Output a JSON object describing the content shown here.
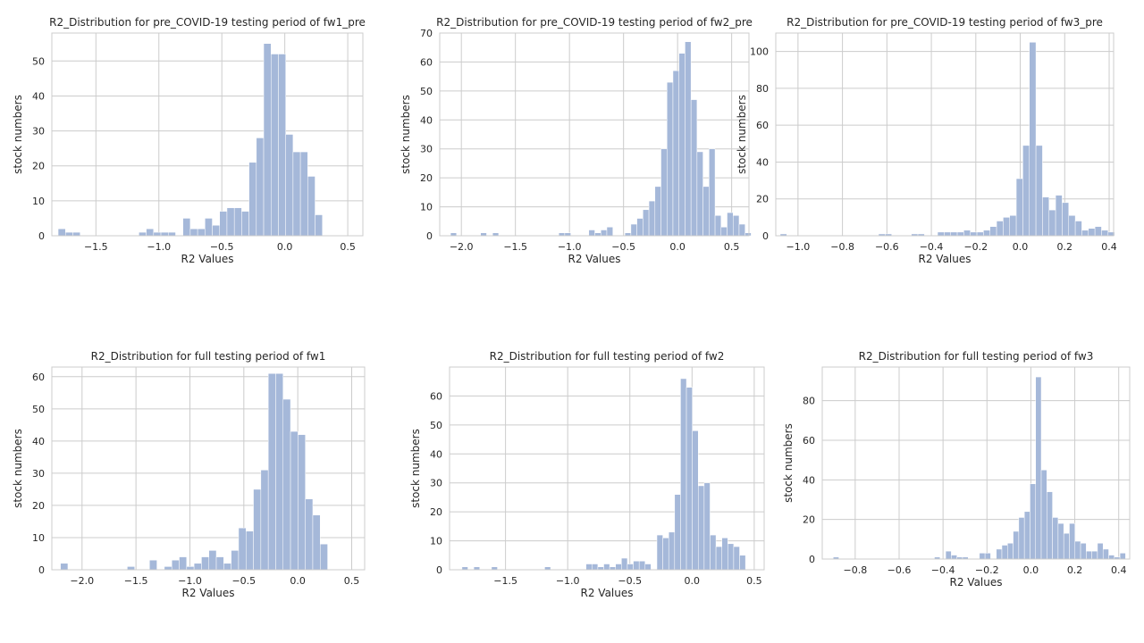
{
  "colors": {
    "bar": "#a5b8d9",
    "grid": "#cccccc",
    "text": "#262626"
  },
  "chart_data": [
    {
      "type": "bar",
      "title": "R2_Distribution for pre_COVID-19 testing period of fw1_pre",
      "xlabel": "R2 Values",
      "ylabel": "stock numbers",
      "xlim": [
        -1.85,
        0.62
      ],
      "ylim": [
        0,
        58
      ],
      "xticks": [
        -1.5,
        -1.0,
        -0.5,
        0.0,
        0.5
      ],
      "xtick_labels": [
        "−1.5",
        "−1.0",
        "−0.5",
        "0.0",
        "0.5"
      ],
      "yticks": [
        0,
        10,
        20,
        30,
        40,
        50
      ],
      "ytick_labels": [
        "0",
        "10",
        "20",
        "30",
        "40",
        "50"
      ],
      "bin_start": -1.8,
      "bin_width": 0.0583,
      "values": [
        2,
        1,
        1,
        0,
        0,
        0,
        0,
        0,
        0,
        0,
        0,
        1,
        2,
        1,
        1,
        1,
        0,
        5,
        2,
        2,
        5,
        3,
        7,
        8,
        8,
        7,
        21,
        28,
        55,
        52,
        52,
        29,
        24,
        24,
        17,
        6
      ]
    },
    {
      "type": "bar",
      "title": "R2_Distribution for pre_COVID-19 testing period of fw2_pre",
      "xlabel": "R2 Values",
      "ylabel": "stock numbers",
      "xlim": [
        -2.2,
        0.66
      ],
      "ylim": [
        0,
        70
      ],
      "xticks": [
        -2.0,
        -1.5,
        -1.0,
        -0.5,
        0.0,
        0.5
      ],
      "xtick_labels": [
        "−2.0",
        "−1.5",
        "−1.0",
        "−0.5",
        "0.0",
        "0.5"
      ],
      "yticks": [
        0,
        10,
        20,
        30,
        40,
        50,
        60,
        70
      ],
      "ytick_labels": [
        "0",
        "10",
        "20",
        "30",
        "40",
        "50",
        "60",
        "70"
      ],
      "bin_start": -2.1,
      "bin_width": 0.0556,
      "values": [
        1,
        0,
        0,
        0,
        0,
        1,
        0,
        1,
        0,
        0,
        0,
        0,
        0,
        0,
        0,
        0,
        0,
        0,
        1,
        1,
        0,
        0,
        0,
        2,
        1,
        2,
        3,
        0,
        0,
        1,
        4,
        6,
        9,
        12,
        17,
        30,
        53,
        57,
        63,
        67,
        47,
        29,
        17,
        30,
        7,
        3,
        8,
        7,
        4,
        1
      ]
    },
    {
      "type": "bar",
      "title": "R2_Distribution for pre_COVID-19 testing period of fw3_pre",
      "xlabel": "R2 Values",
      "ylabel": "stock numbers",
      "xlim": [
        -1.1,
        0.42
      ],
      "ylim": [
        0,
        110
      ],
      "xticks": [
        -1.0,
        -0.8,
        -0.6,
        -0.4,
        -0.2,
        0.0,
        0.2,
        0.4
      ],
      "xtick_labels": [
        "−1.0",
        "−0.8",
        "−0.6",
        "−0.4",
        "−0.2",
        "0.0",
        "0.2",
        "0.4"
      ],
      "yticks": [
        0,
        20,
        40,
        60,
        80,
        100
      ],
      "ytick_labels": [
        "0",
        "20",
        "40",
        "60",
        "80",
        "100"
      ],
      "bin_start": -1.08,
      "bin_width": 0.0295,
      "values": [
        1,
        0,
        0,
        0,
        0,
        0,
        0,
        0,
        0,
        0,
        0,
        0,
        0,
        0,
        0,
        1,
        1,
        0,
        0,
        0,
        1,
        1,
        0,
        0,
        2,
        2,
        2,
        2,
        3,
        2,
        2,
        3,
        5,
        8,
        10,
        11,
        31,
        49,
        105,
        49,
        21,
        14,
        22,
        18,
        11,
        8,
        3,
        4,
        5,
        3,
        2
      ]
    },
    {
      "type": "bar",
      "title": "R2_Distribution for full testing period of fw1",
      "xlabel": "R2 Values",
      "ylabel": "stock numbers",
      "xlim": [
        -2.28,
        0.62
      ],
      "ylim": [
        0,
        63
      ],
      "xticks": [
        -2.0,
        -1.5,
        -1.0,
        -0.5,
        0.0,
        0.5
      ],
      "xtick_labels": [
        "−2.0",
        "−1.5",
        "−1.0",
        "−0.5",
        "0.0",
        "0.5"
      ],
      "yticks": [
        0,
        10,
        20,
        30,
        40,
        50,
        60
      ],
      "ytick_labels": [
        "0",
        "10",
        "20",
        "30",
        "40",
        "50",
        "60"
      ],
      "bin_start": -2.2,
      "bin_width": 0.0688,
      "values": [
        2,
        0,
        0,
        0,
        0,
        0,
        0,
        0,
        0,
        1,
        0,
        0,
        3,
        0,
        1,
        3,
        4,
        1,
        2,
        4,
        6,
        4,
        2,
        6,
        13,
        12,
        25,
        31,
        61,
        61,
        53,
        43,
        42,
        22,
        17,
        8
      ]
    },
    {
      "type": "bar",
      "title": "R2_Distribution for full testing period of fw2",
      "xlabel": "R2 Values",
      "ylabel": "stock numbers",
      "xlim": [
        -1.95,
        0.58
      ],
      "ylim": [
        0,
        70
      ],
      "xticks": [
        -1.5,
        -1.0,
        -0.5,
        0.0,
        0.5
      ],
      "xtick_labels": [
        "−1.5",
        "−1.0",
        "−0.5",
        "0.0",
        "0.5"
      ],
      "yticks": [
        0,
        10,
        20,
        30,
        40,
        50,
        60
      ],
      "ytick_labels": [
        "0",
        "10",
        "20",
        "30",
        "40",
        "50",
        "60"
      ],
      "bin_start": -1.85,
      "bin_width": 0.0475,
      "values": [
        1,
        0,
        1,
        0,
        0,
        1,
        0,
        0,
        0,
        0,
        0,
        0,
        0,
        0,
        1,
        0,
        0,
        0,
        0,
        0,
        0,
        2,
        2,
        1,
        2,
        1,
        2,
        4,
        2,
        3,
        3,
        2,
        0,
        12,
        11,
        13,
        26,
        66,
        63,
        48,
        29,
        30,
        12,
        8,
        11,
        9,
        8,
        5
      ]
    },
    {
      "type": "bar",
      "title": "R2_Distribution for full testing period of fw3",
      "xlabel": "R2 Values",
      "ylabel": "stock numbers",
      "xlim": [
        -0.95,
        0.45
      ],
      "ylim": [
        0,
        97
      ],
      "xticks": [
        -0.8,
        -0.6,
        -0.4,
        -0.2,
        0.0,
        0.2,
        0.4
      ],
      "xtick_labels": [
        "−0.8",
        "−0.6",
        "−0.4",
        "−0.2",
        "0.0",
        "0.2",
        "0.4"
      ],
      "yticks": [
        0,
        20,
        40,
        60,
        80
      ],
      "ytick_labels": [
        "0",
        "20",
        "40",
        "60",
        "80"
      ],
      "bin_start": -0.9,
      "bin_width": 0.0256,
      "values": [
        1,
        0,
        0,
        0,
        0,
        0,
        0,
        0,
        0,
        0,
        0,
        0,
        0,
        0,
        0,
        0,
        0,
        0,
        1,
        0,
        4,
        2,
        1,
        1,
        0,
        0,
        3,
        3,
        0,
        5,
        7,
        8,
        14,
        21,
        24,
        38,
        92,
        45,
        34,
        21,
        18,
        13,
        18,
        9,
        8,
        4,
        4,
        8,
        5,
        2,
        1,
        3
      ]
    }
  ]
}
